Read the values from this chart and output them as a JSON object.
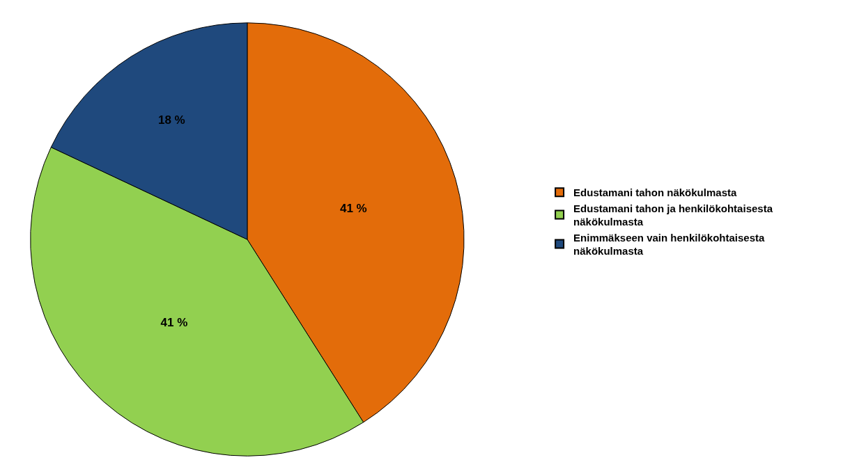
{
  "chart_data": {
    "type": "pie",
    "categories": [
      "Edustamani tahon näkökulmasta",
      "Edustamani tahon ja henkilökohtaisesta näkökulmasta",
      "Enimmäkseen vain henkilökohtaisesta näkökulmasta"
    ],
    "values": [
      41,
      41,
      18
    ],
    "colors": [
      "#e36c0a",
      "#92d050",
      "#1f497d"
    ],
    "value_labels": [
      "41 %",
      "41 %",
      "18 %"
    ],
    "legend": "right"
  }
}
